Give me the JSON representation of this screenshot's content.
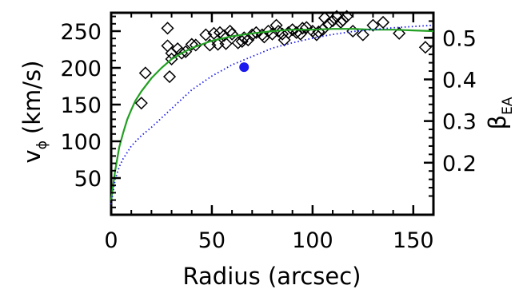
{
  "chart_data": {
    "type": "scatter",
    "xlabel": "Radius (arcsec)",
    "ylabel": {
      "main": "v",
      "sub": "ϕ",
      "unit": "(km/s)"
    },
    "y2label": {
      "main": "β",
      "sub": "EA"
    },
    "xlim": [
      0,
      160
    ],
    "ylim": [
      0,
      275
    ],
    "y2lim": [
      0.075,
      0.56
    ],
    "xticks": [
      0,
      50,
      100,
      150
    ],
    "yticks": [
      50,
      100,
      150,
      200,
      250
    ],
    "y2ticks": [
      0.2,
      0.3,
      0.4,
      0.5
    ],
    "xtick_labels": [
      "0",
      "50",
      "100",
      "150"
    ],
    "ytick_labels": [
      "50",
      "100",
      "150",
      "200",
      "250"
    ],
    "y2tick_labels": [
      "0.2",
      "0.3",
      "0.4",
      "0.5"
    ],
    "grid": false,
    "series": [
      {
        "marker": "diamond-open",
        "color": "#000000",
        "axis": "left",
        "x": [
          15,
          17,
          28,
          28,
          29,
          30,
          30,
          33,
          35,
          37,
          40,
          42,
          47,
          49,
          51,
          53,
          54,
          56,
          57,
          59,
          60,
          63,
          65,
          66,
          68,
          70,
          72,
          75,
          76,
          78,
          80,
          82,
          83,
          85,
          86,
          88,
          90,
          92,
          94,
          95,
          97,
          100,
          102,
          103,
          105,
          106,
          108,
          110,
          112,
          114,
          115,
          117,
          120,
          125,
          130,
          135,
          143,
          156
        ],
        "y": [
          152,
          193,
          254,
          230,
          188,
          220,
          212,
          226,
          220,
          222,
          232,
          231,
          245,
          231,
          247,
          232,
          248,
          244,
          233,
          250,
          246,
          234,
          236,
          241,
          238,
          245,
          248,
          245,
          242,
          250,
          246,
          258,
          250,
          246,
          238,
          248,
          252,
          248,
          246,
          254,
          255,
          250,
          245,
          249,
          252,
          268,
          260,
          264,
          270,
          262,
          265,
          270,
          250,
          245,
          258,
          262,
          247,
          228
        ]
      },
      {
        "style": "solid-line",
        "color": "#22a022",
        "axis": "left",
        "x": [
          0,
          2,
          4,
          6,
          8,
          10,
          12,
          15,
          20,
          25,
          30,
          35,
          40,
          50,
          60,
          70,
          80,
          90,
          100,
          110,
          120,
          130,
          140,
          150,
          160
        ],
        "y": [
          20,
          60,
          92,
          112,
          130,
          143,
          155,
          168,
          186,
          200,
          212,
          220,
          227,
          237,
          243,
          247,
          250,
          252,
          252,
          253,
          253,
          252,
          252,
          251,
          250
        ]
      },
      {
        "style": "dotted-line",
        "color": "#1a1aee",
        "axis": "right",
        "x": [
          0,
          2,
          4,
          6,
          8,
          10,
          15,
          20,
          30,
          40,
          50,
          60,
          70,
          80,
          90,
          100,
          110,
          120,
          130,
          140,
          150,
          160
        ],
        "y": [
          0.1,
          0.16,
          0.19,
          0.21,
          0.225,
          0.24,
          0.265,
          0.285,
          0.33,
          0.375,
          0.408,
          0.435,
          0.455,
          0.475,
          0.488,
          0.499,
          0.508,
          0.515,
          0.52,
          0.524,
          0.527,
          0.53
        ]
      },
      {
        "marker": "filled-circle",
        "color": "#1a1aee",
        "axis": "left",
        "x": [
          66
        ],
        "y": [
          201
        ]
      }
    ]
  }
}
